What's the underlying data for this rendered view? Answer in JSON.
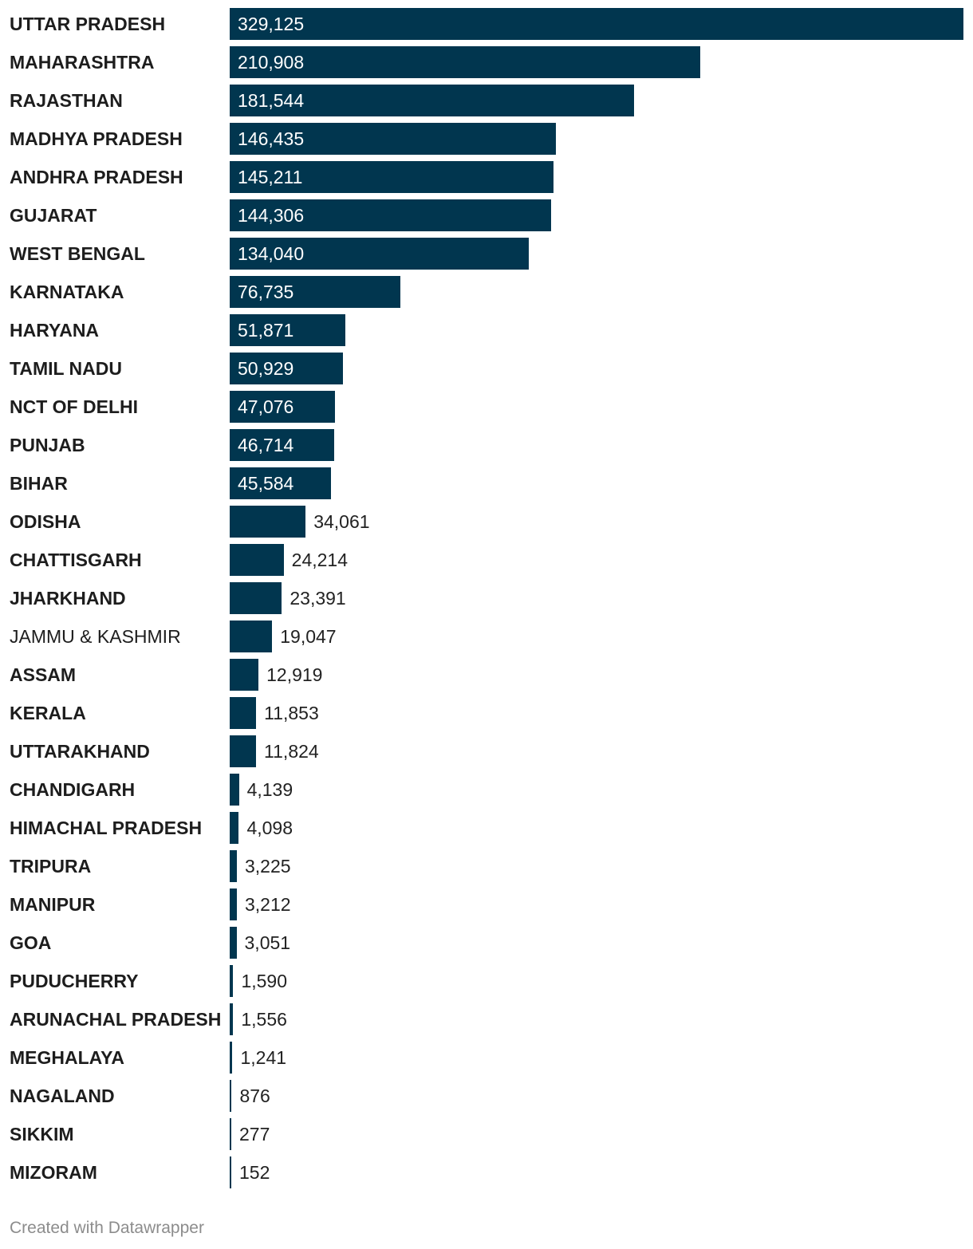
{
  "chart_data": {
    "type": "bar",
    "orientation": "horizontal",
    "bar_color": "#01364f",
    "categories": [
      "UTTAR PRADESH",
      "MAHARASHTRA",
      "RAJASTHAN",
      "MADHYA PRADESH",
      "ANDHRA PRADESH",
      "GUJARAT",
      "WEST BENGAL",
      "KARNATAKA",
      "HARYANA",
      "TAMIL NADU",
      "NCT OF DELHI",
      "PUNJAB",
      "BIHAR",
      "ODISHA",
      "CHATTISGARH",
      "JHARKHAND",
      "JAMMU & KASHMIR",
      "ASSAM",
      "KERALA",
      "UTTARAKHAND",
      "CHANDIGARH",
      "HIMACHAL PRADESH",
      "TRIPURA",
      "MANIPUR",
      "GOA",
      "PUDUCHERRY",
      "ARUNACHAL PRADESH",
      "MEGHALAYA",
      "NAGALAND",
      "SIKKIM",
      "MIZORAM"
    ],
    "values": [
      329125,
      210908,
      181544,
      146435,
      145211,
      144306,
      134040,
      76735,
      51871,
      50929,
      47076,
      46714,
      45584,
      34061,
      24214,
      23391,
      19047,
      12919,
      11853,
      11824,
      4139,
      4098,
      3225,
      3212,
      3051,
      1590,
      1556,
      1241,
      876,
      277,
      152
    ],
    "value_labels": [
      "329,125",
      "210,908",
      "181,544",
      "146,435",
      "145,211",
      "144,306",
      "134,040",
      "76,735",
      "51,871",
      "50,929",
      "47,076",
      "46,714",
      "45,584",
      "34,061",
      "24,214",
      "23,391",
      "19,047",
      "12,919",
      "11,853",
      "11,824",
      "4,139",
      "4,098",
      "3,225",
      "3,212",
      "3,051",
      "1,590",
      "1,556",
      "1,241",
      "876",
      "277",
      "152"
    ],
    "bold_labels": [
      true,
      true,
      true,
      true,
      true,
      true,
      true,
      true,
      true,
      true,
      true,
      true,
      true,
      true,
      true,
      true,
      false,
      true,
      true,
      true,
      true,
      true,
      true,
      true,
      true,
      true,
      true,
      true,
      true,
      true,
      true
    ],
    "xlim": [
      0,
      329125
    ],
    "title": "",
    "xlabel": "",
    "ylabel": "",
    "grid": false
  },
  "footer": {
    "credit": "Created with Datawrapper"
  }
}
